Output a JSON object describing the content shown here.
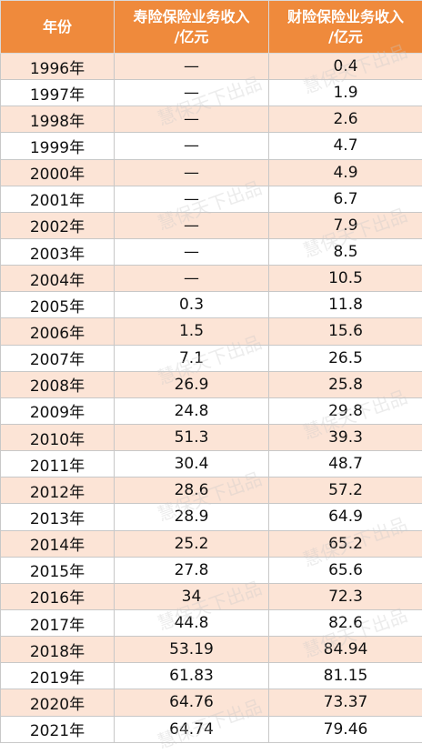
{
  "table": {
    "header": [
      [
        "年份"
      ],
      [
        "寿险保险业务收入",
        "/亿元"
      ],
      [
        "财险保险业务收入",
        "/亿元"
      ]
    ],
    "rows": [
      [
        "1996年",
        "—",
        "0.4"
      ],
      [
        "1997年",
        "—",
        "1.9"
      ],
      [
        "1998年",
        "—",
        "2.6"
      ],
      [
        "1999年",
        "—",
        "4.7"
      ],
      [
        "2000年",
        "—",
        "4.9"
      ],
      [
        "2001年",
        "—",
        "6.7"
      ],
      [
        "2002年",
        "—",
        "7.9"
      ],
      [
        "2003年",
        "—",
        "8.5"
      ],
      [
        "2004年",
        "—",
        "10.5"
      ],
      [
        "2005年",
        "0.3",
        "11.8"
      ],
      [
        "2006年",
        "1.5",
        "15.6"
      ],
      [
        "2007年",
        "7.1",
        "26.5"
      ],
      [
        "2008年",
        "26.9",
        "25.8"
      ],
      [
        "2009年",
        "24.8",
        "29.8"
      ],
      [
        "2010年",
        "51.3",
        "39.3"
      ],
      [
        "2011年",
        "30.4",
        "48.7"
      ],
      [
        "2012年",
        "28.6",
        "57.2"
      ],
      [
        "2013年",
        "28.9",
        "64.9"
      ],
      [
        "2014年",
        "25.2",
        "65.2"
      ],
      [
        "2015年",
        "27.8",
        "65.6"
      ],
      [
        "2016年",
        "34",
        "72.3"
      ],
      [
        "2017年",
        "44.8",
        "82.6"
      ],
      [
        "2018年",
        "53.19",
        "84.94"
      ],
      [
        "2019年",
        "61.83",
        "81.15"
      ],
      [
        "2020年",
        "64.76",
        "73.37"
      ],
      [
        "2021年",
        "64.74",
        "79.46"
      ]
    ]
  },
  "watermark": "慧保天下出品"
}
